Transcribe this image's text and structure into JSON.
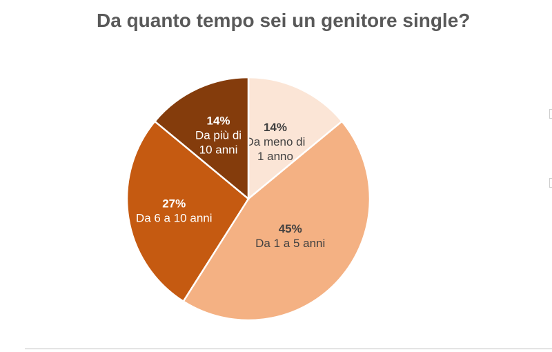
{
  "chart_data": {
    "type": "pie",
    "title": "Da quanto tempo sei un genitore single?",
    "categories": [
      "Da meno di 1 anno",
      "Da 1 a 5 anni",
      "Da 6 a 10 anni",
      "Da più di 10 anni"
    ],
    "values": [
      14,
      45,
      27,
      14
    ],
    "value_labels": [
      "14%",
      "45%",
      "27%",
      "14%"
    ],
    "category_label_lines": [
      [
        "Da meno di",
        "1 anno"
      ],
      [
        "Da 1 a 5 anni"
      ],
      [
        "Da 6 a 10 anni"
      ],
      [
        "Da più di",
        "10 anni"
      ]
    ],
    "colors": [
      "#fbe5d6",
      "#f4b183",
      "#c55a11",
      "#843c0c"
    ],
    "label_colors": [
      "#404040",
      "#404040",
      "#ffffff",
      "#ffffff"
    ],
    "start_angle": "12 o'clock",
    "direction": "clockwise",
    "legend": "none",
    "data_labels": "inside"
  }
}
